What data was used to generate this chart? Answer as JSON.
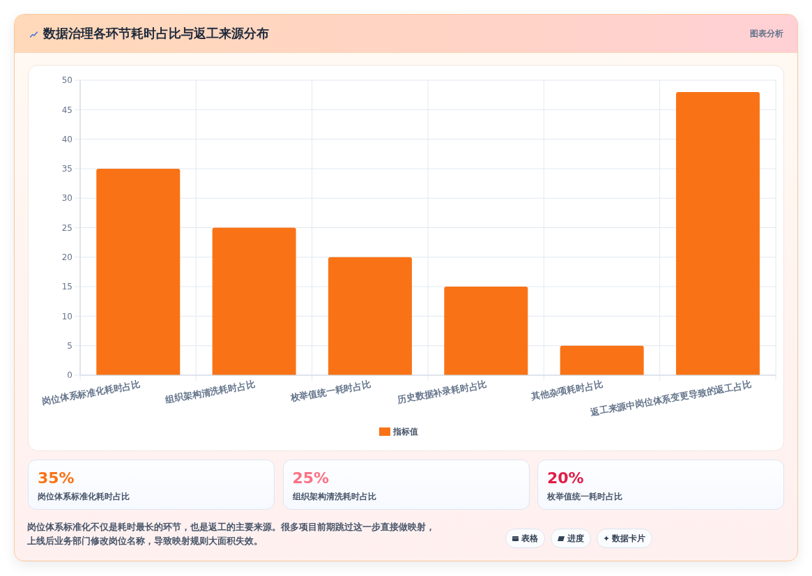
{
  "chart_data": {
    "type": "bar",
    "title": "数据治理各环节耗时占比与返工来源分布",
    "categories": [
      "岗位体系标准化耗时占比",
      "组织架构清洗耗时占比",
      "枚举值统一耗时占比",
      "历史数据补录耗时占比",
      "其他杂项耗时占比",
      "返工来源中岗位体系变更导致的返工占比"
    ],
    "series": [
      {
        "name": "指标值",
        "color": "#f97316",
        "values": [
          35,
          25,
          20,
          15,
          5,
          48
        ]
      }
    ],
    "ylim": [
      0,
      50
    ],
    "yticks": [
      0,
      5,
      10,
      15,
      20,
      25,
      30,
      35,
      40,
      45,
      50
    ],
    "grid": true,
    "legend": "bottom",
    "annotations": [
      "图表分析",
      "35%",
      "岗位体系标准化耗时占比",
      "25%",
      "组织架构清洗耗时占比",
      "20%",
      "枚举值统一耗时占比",
      "岗位体系标准化不仅是耗时最长的环节，也是返工的主要来源。很多项目前期跳过这一步直接做映射，上线后业务部门修改岗位名称，导致映射规则大面积失效。",
      "表格",
      "进度",
      "数据卡片"
    ]
  }
}
